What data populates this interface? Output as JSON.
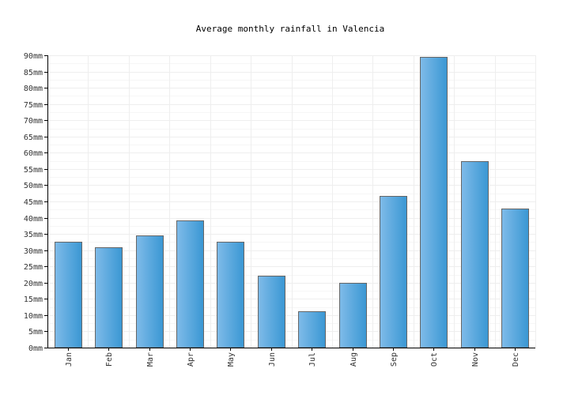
{
  "chart_data": {
    "type": "bar",
    "title": "Average monthly rainfall in Valencia",
    "xlabel": "",
    "ylabel": "",
    "categories": [
      "Jan",
      "Feb",
      "Mar",
      "Apr",
      "May",
      "Jun",
      "Jul",
      "Aug",
      "Sep",
      "Oct",
      "Nov",
      "Dec"
    ],
    "values": [
      32.5,
      31,
      34.5,
      39.2,
      32.7,
      22.2,
      11.2,
      20,
      46.8,
      89.6,
      57.5,
      42.7
    ],
    "ylim": [
      0,
      90
    ],
    "y_ticks": [
      0,
      5,
      10,
      15,
      20,
      25,
      30,
      35,
      40,
      45,
      50,
      55,
      60,
      65,
      70,
      75,
      80,
      85,
      90
    ],
    "y_tick_labels": [
      "0mm",
      "5mm",
      "10mm",
      "15mm",
      "20mm",
      "25mm",
      "30mm",
      "35mm",
      "40mm",
      "45mm",
      "50mm",
      "55mm",
      "60mm",
      "65mm",
      "70mm",
      "75mm",
      "80mm",
      "85mm",
      "90mm"
    ],
    "grid": true,
    "legend": "none",
    "bar_color_light": "#7fbbe9",
    "bar_color_dark": "#3a97d3",
    "bar_border_color": "#666666"
  }
}
